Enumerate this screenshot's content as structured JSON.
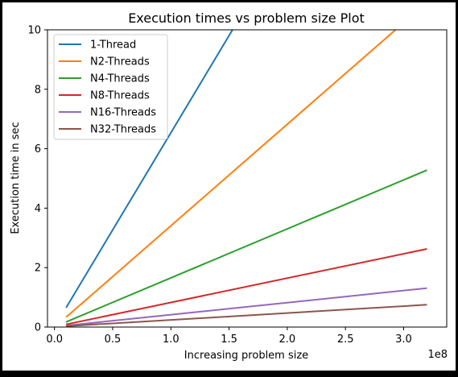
{
  "chart_data": {
    "type": "line",
    "title": "Execution times vs problem size Plot",
    "xlabel": "Increasing problem size",
    "ylabel": "Execution time in sec",
    "x_offset_label": "1e8",
    "xlim": [
      -0.06,
      3.37
    ],
    "ylim": [
      0,
      10
    ],
    "xticks": [
      0.0,
      0.5,
      1.0,
      1.5,
      2.0,
      2.5,
      3.0
    ],
    "xtick_labels": [
      "0.0",
      "0.5",
      "1.0",
      "1.5",
      "2.0",
      "2.5",
      "3.0"
    ],
    "yticks": [
      0,
      2,
      4,
      6,
      8,
      10
    ],
    "ytick_labels": [
      "0",
      "2",
      "4",
      "6",
      "8",
      "10"
    ],
    "grid": false,
    "legend_position": "top-left",
    "series": [
      {
        "name": "1-Thread",
        "color": "#1f77b4",
        "x": [
          0.1,
          1.53
        ],
        "y": [
          0.65,
          10.0
        ]
      },
      {
        "name": "N2-Threads",
        "color": "#ff7f0e",
        "x": [
          0.1,
          2.93
        ],
        "y": [
          0.33,
          10.0
        ]
      },
      {
        "name": "N4-Threads",
        "color": "#2ca02c",
        "x": [
          0.1,
          3.2
        ],
        "y": [
          0.17,
          5.28
        ]
      },
      {
        "name": "N8-Threads",
        "color": "#d62728",
        "x": [
          0.1,
          3.2
        ],
        "y": [
          0.09,
          2.63
        ]
      },
      {
        "name": "N16-Threads",
        "color": "#9467bd",
        "x": [
          0.1,
          3.2
        ],
        "y": [
          0.05,
          1.31
        ]
      },
      {
        "name": "N32-Threads",
        "color": "#8c564b",
        "x": [
          0.1,
          3.2
        ],
        "y": [
          0.03,
          0.75
        ]
      }
    ]
  }
}
